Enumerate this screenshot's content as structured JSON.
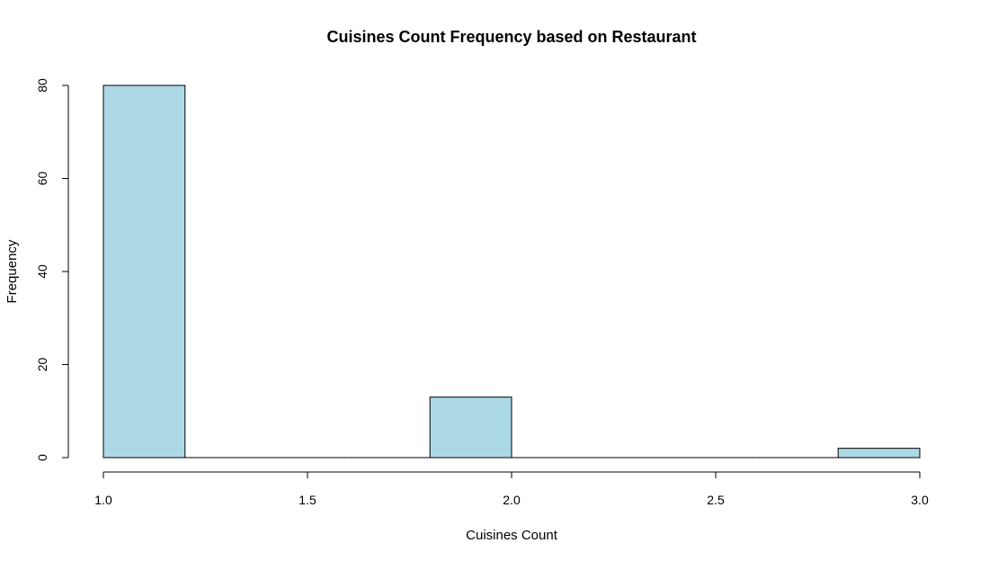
{
  "chart_data": {
    "type": "bar",
    "title": "Cuisines Count Frequency based on Restaurant",
    "xlabel": "Cuisines Count",
    "ylabel": "Frequency",
    "bins": [
      {
        "start": 1.0,
        "end": 1.2,
        "value": 80
      },
      {
        "start": 1.2,
        "end": 1.4,
        "value": 0
      },
      {
        "start": 1.4,
        "end": 1.6,
        "value": 0
      },
      {
        "start": 1.6,
        "end": 1.8,
        "value": 0
      },
      {
        "start": 1.8,
        "end": 2.0,
        "value": 13
      },
      {
        "start": 2.0,
        "end": 2.2,
        "value": 0
      },
      {
        "start": 2.2,
        "end": 2.4,
        "value": 0
      },
      {
        "start": 2.4,
        "end": 2.6,
        "value": 0
      },
      {
        "start": 2.6,
        "end": 2.8,
        "value": 0
      },
      {
        "start": 2.8,
        "end": 3.0,
        "value": 2
      }
    ],
    "xlim": [
      1.0,
      3.0
    ],
    "ylim": [
      0,
      80
    ],
    "x_ticks": [
      "1.0",
      "1.5",
      "2.0",
      "2.5",
      "3.0"
    ],
    "y_ticks": [
      "0",
      "20",
      "40",
      "60",
      "80"
    ],
    "grid": false,
    "bar_color": "#add8e6",
    "edge_color": "#000000"
  }
}
